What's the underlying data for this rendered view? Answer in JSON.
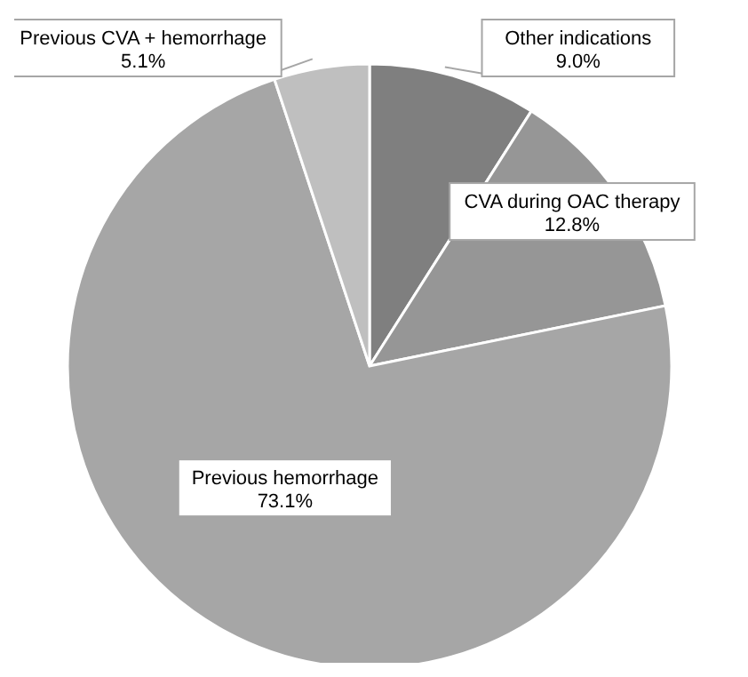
{
  "chart_data": {
    "type": "pie",
    "categories": [
      "Other indications",
      "CVA during OAC therapy",
      "Previous hemorrhage",
      "Previous CVA + hemorrhage"
    ],
    "values": [
      9.0,
      12.8,
      73.1,
      5.1
    ],
    "colors": [
      "#7f7f7f",
      "#969696",
      "#a6a6a6",
      "#bfbfbf"
    ],
    "value_labels": [
      "9.0%",
      "12.8%",
      "73.1%",
      "5.1%"
    ],
    "legend": false
  }
}
